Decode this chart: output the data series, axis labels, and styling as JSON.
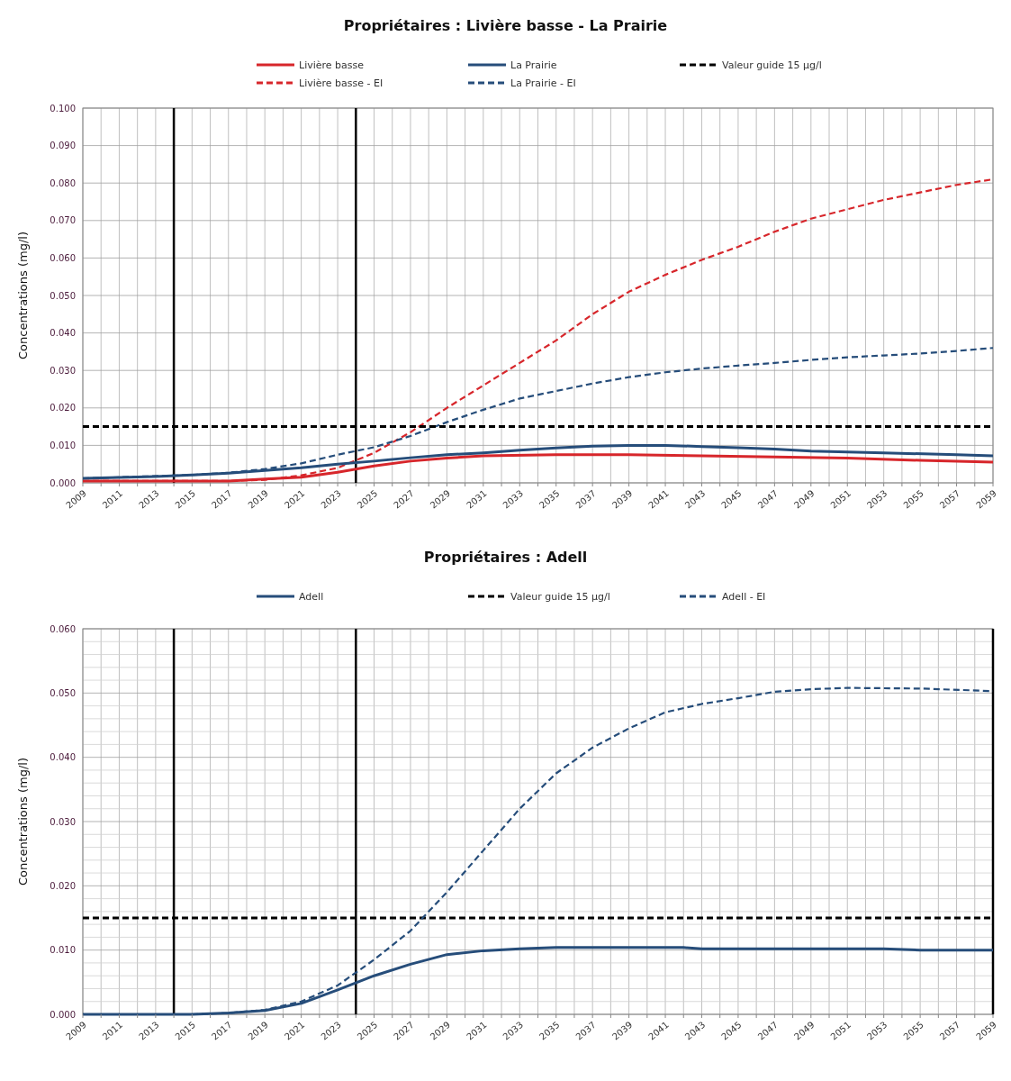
{
  "chart_data": [
    {
      "type": "line",
      "title": "Propriétaires : Livière basse - La Prairie",
      "ylabel": "Concentrations (mg/l)",
      "legend": "top",
      "grid": true,
      "xlim": [
        2009,
        2059
      ],
      "xticks": [
        2009,
        {
          "value": 2010,
          "label": null
        },
        2011,
        {
          "value": 2012,
          "label": null
        },
        2013,
        {
          "value": 2014,
          "label": null
        },
        2015,
        {
          "value": 2016,
          "label": null
        },
        2017,
        {
          "value": 2018,
          "label": null
        },
        2019,
        {
          "value": 2020,
          "label": null
        },
        2021,
        {
          "value": 2022,
          "label": null
        },
        2023,
        {
          "value": 2024,
          "label": null
        },
        2025,
        {
          "value": 2026,
          "label": null
        },
        2027,
        {
          "value": 2028,
          "label": null
        },
        2029,
        {
          "value": 2030,
          "label": null
        },
        2031,
        {
          "value": 2032,
          "label": null
        },
        2033,
        {
          "value": 2034,
          "label": null
        },
        2035,
        {
          "value": 2036,
          "label": null
        },
        2037,
        {
          "value": 2038,
          "label": null
        },
        2039,
        {
          "value": 2040,
          "label": null
        },
        2041,
        {
          "value": 2042,
          "label": null
        },
        2043,
        {
          "value": 2044,
          "label": null
        },
        2045,
        {
          "value": 2046,
          "label": null
        },
        2047,
        {
          "value": 2048,
          "label": null
        },
        2049,
        {
          "value": 2050,
          "label": null
        },
        2051,
        {
          "value": 2052,
          "label": null
        },
        2053,
        {
          "value": 2054,
          "label": null
        },
        2055,
        {
          "value": 2056,
          "label": null
        },
        2057,
        {
          "value": 2058,
          "label": null
        },
        2059
      ],
      "ylim": [
        0,
        0.1
      ],
      "yticks": [
        {
          "value": 0,
          "label": "0.000"
        },
        {
          "value": 0.01,
          "label": "0.010"
        },
        {
          "value": 0.02,
          "label": "0.020"
        },
        {
          "value": 0.03,
          "label": "0.030"
        },
        {
          "value": 0.04,
          "label": "0.040"
        },
        {
          "value": 0.05,
          "label": "0.050"
        },
        {
          "value": 0.06,
          "label": "0.060"
        },
        {
          "value": 0.07,
          "label": "0.070"
        },
        {
          "value": 0.08,
          "label": "0.080"
        },
        {
          "value": 0.09,
          "label": "0.090"
        },
        {
          "value": 0.1,
          "label": "0.100"
        }
      ],
      "ref_lines": [
        {
          "axis": "x",
          "value": 2014,
          "color": "#000000"
        },
        {
          "axis": "x",
          "value": 2024,
          "color": "#000000"
        }
      ],
      "series": [
        {
          "name": "Livière basse",
          "color": "#d7262b",
          "line_style": "solid",
          "x": [
            2009,
            2015,
            2017,
            2019,
            2021,
            2023,
            2025,
            2027,
            2029,
            2031,
            2035,
            2039,
            2043,
            2047,
            2051,
            2055,
            2059
          ],
          "values": [
            0.0005,
            0.0005,
            0.0005,
            0.001,
            0.0015,
            0.0028,
            0.0045,
            0.0058,
            0.0066,
            0.0072,
            0.0075,
            0.0075,
            0.0072,
            0.0069,
            0.0066,
            0.006,
            0.0055
          ]
        },
        {
          "name": "Livière basse - EI",
          "color": "#d7262b",
          "line_style": "dashed",
          "x": [
            2009,
            2017,
            2019,
            2021,
            2023,
            2025,
            2027,
            2029,
            2031,
            2033,
            2035,
            2037,
            2039,
            2041,
            2043,
            2045,
            2047,
            2049,
            2051,
            2053,
            2055,
            2057,
            2059
          ],
          "values": [
            0.0005,
            0.0005,
            0.0008,
            0.002,
            0.004,
            0.008,
            0.0135,
            0.02,
            0.026,
            0.032,
            0.038,
            0.045,
            0.051,
            0.0555,
            0.0595,
            0.063,
            0.067,
            0.0705,
            0.073,
            0.0755,
            0.0775,
            0.0795,
            0.081
          ]
        },
        {
          "name": "La Prairie",
          "color": "#264d7a",
          "line_style": "solid",
          "x": [
            2009,
            2013,
            2015,
            2017,
            2019,
            2021,
            2023,
            2025,
            2027,
            2029,
            2031,
            2033,
            2035,
            2037,
            2039,
            2041,
            2043,
            2045,
            2047,
            2049,
            2053,
            2057,
            2059
          ],
          "values": [
            0.0012,
            0.0017,
            0.0021,
            0.0026,
            0.0033,
            0.004,
            0.005,
            0.0058,
            0.0067,
            0.0075,
            0.008,
            0.0087,
            0.0093,
            0.0098,
            0.01,
            0.01,
            0.0097,
            0.0094,
            0.009,
            0.0085,
            0.008,
            0.0075,
            0.0072
          ]
        },
        {
          "name": "La Prairie - EI",
          "color": "#264d7a",
          "line_style": "dashed",
          "x": [
            2009,
            2015,
            2017,
            2019,
            2021,
            2023,
            2025,
            2027,
            2029,
            2031,
            2033,
            2035,
            2037,
            2039,
            2041,
            2043,
            2045,
            2047,
            2049,
            2051,
            2053,
            2055,
            2057,
            2059
          ],
          "values": [
            0.0012,
            0.0021,
            0.0027,
            0.0037,
            0.0052,
            0.0075,
            0.0095,
            0.0125,
            0.0162,
            0.0195,
            0.0225,
            0.0245,
            0.0265,
            0.0282,
            0.0295,
            0.0305,
            0.0313,
            0.032,
            0.0328,
            0.0335,
            0.034,
            0.0345,
            0.0352,
            0.036
          ]
        },
        {
          "name": "Valeur guide 15 µg/l",
          "color": "#000000",
          "line_style": "dashed",
          "x": [
            2009,
            2059
          ],
          "values": [
            0.015,
            0.015
          ]
        }
      ]
    },
    {
      "type": "line",
      "title": "Propriétaires : Adell",
      "ylabel": "Concentrations (mg/l)",
      "legend": "top",
      "grid": true,
      "xlim": [
        2009,
        2059
      ],
      "xticks": [
        2009,
        {
          "value": 2010,
          "label": null
        },
        2011,
        {
          "value": 2012,
          "label": null
        },
        2013,
        {
          "value": 2014,
          "label": null
        },
        2015,
        {
          "value": 2016,
          "label": null
        },
        2017,
        {
          "value": 2018,
          "label": null
        },
        2019,
        {
          "value": 2020,
          "label": null
        },
        2021,
        {
          "value": 2022,
          "label": null
        },
        2023,
        {
          "value": 2024,
          "label": null
        },
        2025,
        {
          "value": 2026,
          "label": null
        },
        2027,
        {
          "value": 2028,
          "label": null
        },
        2029,
        {
          "value": 2030,
          "label": null
        },
        2031,
        {
          "value": 2032,
          "label": null
        },
        2033,
        {
          "value": 2034,
          "label": null
        },
        2035,
        {
          "value": 2036,
          "label": null
        },
        2037,
        {
          "value": 2038,
          "label": null
        },
        2039,
        {
          "value": 2040,
          "label": null
        },
        2041,
        {
          "value": 2042,
          "label": null
        },
        2043,
        {
          "value": 2044,
          "label": null
        },
        2045,
        {
          "value": 2046,
          "label": null
        },
        2047,
        {
          "value": 2048,
          "label": null
        },
        2049,
        {
          "value": 2050,
          "label": null
        },
        2051,
        {
          "value": 2052,
          "label": null
        },
        2053,
        {
          "value": 2054,
          "label": null
        },
        2055,
        {
          "value": 2056,
          "label": null
        },
        2057,
        {
          "value": 2058,
          "label": null
        },
        2059
      ],
      "ylim": [
        0,
        0.06
      ],
      "yticks": [
        {
          "value": 0,
          "label": "0.000"
        },
        {
          "value": 0.002,
          "label": null
        },
        {
          "value": 0.004,
          "label": null
        },
        {
          "value": 0.006,
          "label": null
        },
        {
          "value": 0.008,
          "label": null
        },
        {
          "value": 0.01,
          "label": "0.010"
        },
        {
          "value": 0.012,
          "label": null
        },
        {
          "value": 0.014,
          "label": null
        },
        {
          "value": 0.016,
          "label": null
        },
        {
          "value": 0.018,
          "label": null
        },
        {
          "value": 0.02,
          "label": "0.020"
        },
        {
          "value": 0.022,
          "label": null
        },
        {
          "value": 0.024,
          "label": null
        },
        {
          "value": 0.026,
          "label": null
        },
        {
          "value": 0.028,
          "label": null
        },
        {
          "value": 0.03,
          "label": "0.030"
        },
        {
          "value": 0.032,
          "label": null
        },
        {
          "value": 0.034,
          "label": null
        },
        {
          "value": 0.036,
          "label": null
        },
        {
          "value": 0.038,
          "label": null
        },
        {
          "value": 0.04,
          "label": "0.040"
        },
        {
          "value": 0.042,
          "label": null
        },
        {
          "value": 0.044,
          "label": null
        },
        {
          "value": 0.046,
          "label": null
        },
        {
          "value": 0.048,
          "label": null
        },
        {
          "value": 0.05,
          "label": "0.050"
        },
        {
          "value": 0.052,
          "label": null
        },
        {
          "value": 0.054,
          "label": null
        },
        {
          "value": 0.056,
          "label": null
        },
        {
          "value": 0.058,
          "label": null
        },
        {
          "value": 0.06,
          "label": "0.060"
        }
      ],
      "ref_lines": [
        {
          "axis": "x",
          "value": 2014,
          "color": "#000000"
        },
        {
          "axis": "x",
          "value": 2024,
          "color": "#000000"
        },
        {
          "axis": "x",
          "value": 2059,
          "color": "#000000"
        }
      ],
      "series": [
        {
          "name": "Adell",
          "color": "#264d7a",
          "line_style": "solid",
          "x": [
            2009,
            2015,
            2017,
            2019,
            2021,
            2023,
            2025,
            2027,
            2029,
            2031,
            2033,
            2035,
            2039,
            2042,
            2043,
            2053,
            2055,
            2059
          ],
          "values": [
            0,
            0,
            0.0002,
            0.0006,
            0.0017,
            0.0038,
            0.006,
            0.0078,
            0.0093,
            0.0099,
            0.0102,
            0.0104,
            0.0104,
            0.0104,
            0.0102,
            0.0102,
            0.01,
            0.01
          ]
        },
        {
          "name": "Valeur guide 15 µg/l",
          "color": "#000000",
          "line_style": "dashed",
          "x": [
            2009,
            2059
          ],
          "values": [
            0.015,
            0.015
          ]
        },
        {
          "name": "Adell - EI",
          "color": "#264d7a",
          "line_style": "dashed",
          "x": [
            2009,
            2015,
            2017,
            2019,
            2021,
            2023,
            2025,
            2027,
            2029,
            2031,
            2033,
            2035,
            2037,
            2039,
            2041,
            2043,
            2045,
            2047,
            2049,
            2051,
            2055,
            2059
          ],
          "values": [
            0,
            0,
            0.0002,
            0.0007,
            0.002,
            0.0045,
            0.0085,
            0.013,
            0.019,
            0.0255,
            0.032,
            0.0375,
            0.0415,
            0.0445,
            0.047,
            0.0483,
            0.0492,
            0.0502,
            0.0506,
            0.0508,
            0.0507,
            0.0503
          ]
        }
      ]
    }
  ]
}
